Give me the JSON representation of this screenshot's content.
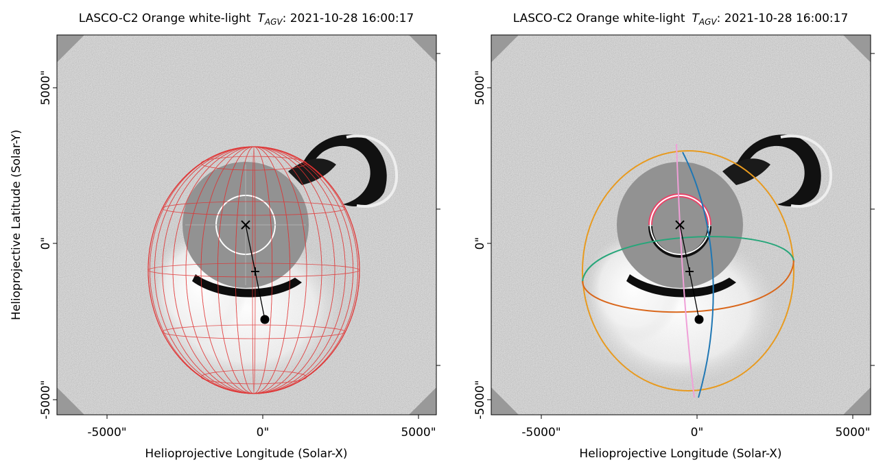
{
  "panels": [
    {
      "title_prefix": "LASCO-C2 Orange white-light",
      "title_time_symbol": "T",
      "title_time_sub": "AGV",
      "title_time_value": ": 2021-10-28 16:00:17",
      "xlabel": "Helioprojective Longitude (Solar-X)",
      "ylabel": "Helioprojective Latitude (Solar-Y)",
      "xticks": [
        "-5000\"",
        "0\"",
        "5000\""
      ],
      "yticks": [
        "5000\"",
        "0\"",
        "-5000\""
      ],
      "overlay": "red wireframe ellipsoid"
    },
    {
      "title_prefix": "LASCO-C2 Orange white-light",
      "title_time_symbol": "T",
      "title_time_sub": "AGV",
      "title_time_value": ": 2021-10-28 16:00:17",
      "xlabel": "Helioprojective Longitude (Solar-X)",
      "ylabel": "",
      "xticks": [
        "-5000\"",
        "0\"",
        "5000\""
      ],
      "yticks": [
        "5000\"",
        "0\"",
        "-5000\""
      ],
      "overlay": "ellipsoid outline curves"
    }
  ],
  "colors": {
    "background_sky": "#a9a9a9",
    "occulter": "#929292",
    "wireframe": "#e03030",
    "outline_orange": "#e89a1e",
    "outline_green": "#27a67a",
    "outline_dark_orange": "#d9661a",
    "outline_blue": "#1f77b4",
    "outline_pink": "#f0a0d8",
    "limb_red": "#e8456a"
  }
}
